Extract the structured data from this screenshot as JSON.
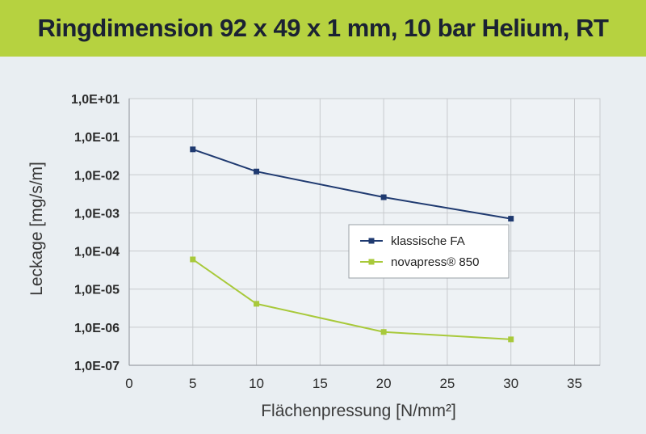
{
  "title": "Ringdimension 92 x 49 x 1 mm, 10 bar Helium, RT",
  "colors": {
    "title_bg": "#b6d240",
    "panel_bg": "#e9eef2",
    "series_1": "#1f3a70",
    "series_2": "#a8c93a",
    "grid": "#c7cacd"
  },
  "chart_data": {
    "type": "line",
    "title": "Ringdimension 92 x 49 x 1 mm, 10 bar Helium, RT",
    "xlabel": "Flächenpressung [N/mm²]",
    "ylabel": "Leckage [mg/s/m]",
    "xlim": [
      0,
      37
    ],
    "ylim": [
      1e-07,
      10
    ],
    "y_scale": "log",
    "grid": true,
    "legend_position": "center-right",
    "x_ticks": [
      "0",
      "5",
      "10",
      "15",
      "20",
      "25",
      "30",
      "35"
    ],
    "x_tick_values": [
      0,
      5,
      10,
      15,
      20,
      25,
      30,
      35
    ],
    "y_ticks": [
      "1,0E+01",
      "1,0E-01",
      "1,0E-02",
      "1,0E-03",
      "1,0E-04",
      "1,0E-05",
      "1,0E-06",
      "1,0E-07"
    ],
    "y_tick_values": [
      10,
      0.1,
      0.01,
      0.001,
      0.0001,
      1e-05,
      1e-06,
      1e-07
    ],
    "series": [
      {
        "name": "klassische FA",
        "x": [
          5,
          10,
          20,
          30
        ],
        "y": [
          0.3,
          0.065,
          0.011,
          0.0025
        ]
      },
      {
        "name": "novapress® 850",
        "x": [
          5,
          10,
          20,
          30
        ],
        "y": [
          0.00015,
          7e-06,
          1e-06,
          6e-07
        ]
      }
    ]
  }
}
